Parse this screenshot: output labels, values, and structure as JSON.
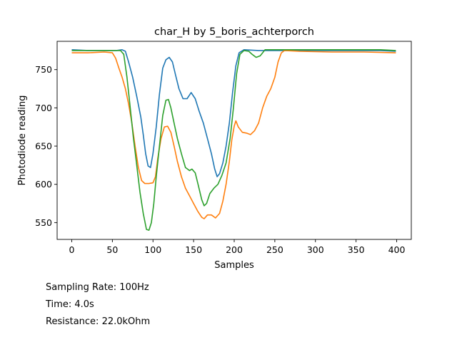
{
  "chart_data": {
    "type": "line",
    "title": "char_H by 5_boris_achterporch",
    "xlabel": "Samples",
    "ylabel": "Photodiode reading",
    "xlim": [
      -18,
      418
    ],
    "ylim": [
      528,
      787
    ],
    "xticks": [
      0,
      50,
      100,
      150,
      200,
      250,
      300,
      350,
      400
    ],
    "yticks": [
      550,
      600,
      650,
      700,
      750
    ],
    "grid": false,
    "legend": "none",
    "series": [
      {
        "color": "#1f77b4",
        "points": [
          [
            0,
            776
          ],
          [
            20,
            775
          ],
          [
            40,
            775
          ],
          [
            55,
            775
          ],
          [
            62,
            776
          ],
          [
            66,
            774
          ],
          [
            70,
            760
          ],
          [
            75,
            740
          ],
          [
            80,
            715
          ],
          [
            85,
            688
          ],
          [
            88,
            665
          ],
          [
            91,
            640
          ],
          [
            94,
            624
          ],
          [
            97,
            622
          ],
          [
            100,
            640
          ],
          [
            104,
            675
          ],
          [
            108,
            718
          ],
          [
            112,
            752
          ],
          [
            116,
            763
          ],
          [
            120,
            766
          ],
          [
            124,
            760
          ],
          [
            128,
            742
          ],
          [
            132,
            725
          ],
          [
            137,
            712
          ],
          [
            142,
            712
          ],
          [
            147,
            720
          ],
          [
            152,
            712
          ],
          [
            157,
            695
          ],
          [
            162,
            680
          ],
          [
            167,
            660
          ],
          [
            172,
            640
          ],
          [
            176,
            620
          ],
          [
            179,
            610
          ],
          [
            182,
            614
          ],
          [
            186,
            628
          ],
          [
            190,
            650
          ],
          [
            194,
            680
          ],
          [
            198,
            720
          ],
          [
            202,
            755
          ],
          [
            206,
            772
          ],
          [
            212,
            776
          ],
          [
            230,
            775
          ],
          [
            260,
            775
          ],
          [
            300,
            775
          ],
          [
            340,
            775
          ],
          [
            380,
            775
          ],
          [
            399,
            774
          ]
        ]
      },
      {
        "color": "#ff7f0e",
        "points": [
          [
            0,
            772
          ],
          [
            20,
            772
          ],
          [
            40,
            773
          ],
          [
            50,
            772
          ],
          [
            54,
            765
          ],
          [
            58,
            752
          ],
          [
            62,
            740
          ],
          [
            66,
            725
          ],
          [
            70,
            705
          ],
          [
            74,
            680
          ],
          [
            78,
            650
          ],
          [
            82,
            622
          ],
          [
            86,
            605
          ],
          [
            90,
            601
          ],
          [
            95,
            601
          ],
          [
            100,
            602
          ],
          [
            103,
            610
          ],
          [
            106,
            635
          ],
          [
            110,
            660
          ],
          [
            114,
            675
          ],
          [
            118,
            676
          ],
          [
            122,
            668
          ],
          [
            126,
            650
          ],
          [
            130,
            630
          ],
          [
            135,
            610
          ],
          [
            140,
            595
          ],
          [
            145,
            585
          ],
          [
            150,
            575
          ],
          [
            155,
            565
          ],
          [
            160,
            557
          ],
          [
            163,
            555
          ],
          [
            167,
            560
          ],
          [
            172,
            560
          ],
          [
            177,
            556
          ],
          [
            182,
            562
          ],
          [
            186,
            578
          ],
          [
            190,
            600
          ],
          [
            194,
            630
          ],
          [
            197,
            658
          ],
          [
            200,
            676
          ],
          [
            202,
            683
          ],
          [
            205,
            675
          ],
          [
            210,
            668
          ],
          [
            215,
            667
          ],
          [
            220,
            665
          ],
          [
            225,
            670
          ],
          [
            230,
            680
          ],
          [
            235,
            700
          ],
          [
            240,
            715
          ],
          [
            245,
            725
          ],
          [
            250,
            740
          ],
          [
            254,
            760
          ],
          [
            258,
            772
          ],
          [
            262,
            775
          ],
          [
            280,
            774
          ],
          [
            320,
            773
          ],
          [
            360,
            773
          ],
          [
            399,
            772
          ]
        ]
      },
      {
        "color": "#2ca02c",
        "points": [
          [
            0,
            775
          ],
          [
            20,
            775
          ],
          [
            40,
            775
          ],
          [
            60,
            775
          ],
          [
            64,
            770
          ],
          [
            68,
            740
          ],
          [
            72,
            700
          ],
          [
            76,
            660
          ],
          [
            80,
            625
          ],
          [
            84,
            590
          ],
          [
            88,
            562
          ],
          [
            92,
            541
          ],
          [
            95,
            540
          ],
          [
            98,
            550
          ],
          [
            101,
            575
          ],
          [
            104,
            610
          ],
          [
            108,
            650
          ],
          [
            112,
            690
          ],
          [
            116,
            710
          ],
          [
            119,
            711
          ],
          [
            122,
            700
          ],
          [
            126,
            680
          ],
          [
            130,
            660
          ],
          [
            135,
            640
          ],
          [
            140,
            622
          ],
          [
            145,
            618
          ],
          [
            148,
            620
          ],
          [
            152,
            615
          ],
          [
            156,
            598
          ],
          [
            160,
            580
          ],
          [
            163,
            572
          ],
          [
            166,
            575
          ],
          [
            170,
            588
          ],
          [
            175,
            595
          ],
          [
            180,
            600
          ],
          [
            185,
            612
          ],
          [
            190,
            628
          ],
          [
            195,
            660
          ],
          [
            199,
            700
          ],
          [
            203,
            745
          ],
          [
            207,
            770
          ],
          [
            212,
            775
          ],
          [
            218,
            774
          ],
          [
            222,
            770
          ],
          [
            227,
            766
          ],
          [
            232,
            768
          ],
          [
            238,
            776
          ],
          [
            245,
            776
          ],
          [
            260,
            776
          ],
          [
            300,
            776
          ],
          [
            340,
            776
          ],
          [
            380,
            776
          ],
          [
            399,
            775
          ]
        ]
      }
    ]
  },
  "info": {
    "sampling_rate": "Sampling Rate: 100Hz",
    "time": "Time: 4.0s",
    "resistance": "Resistance: 22.0kOhm"
  }
}
